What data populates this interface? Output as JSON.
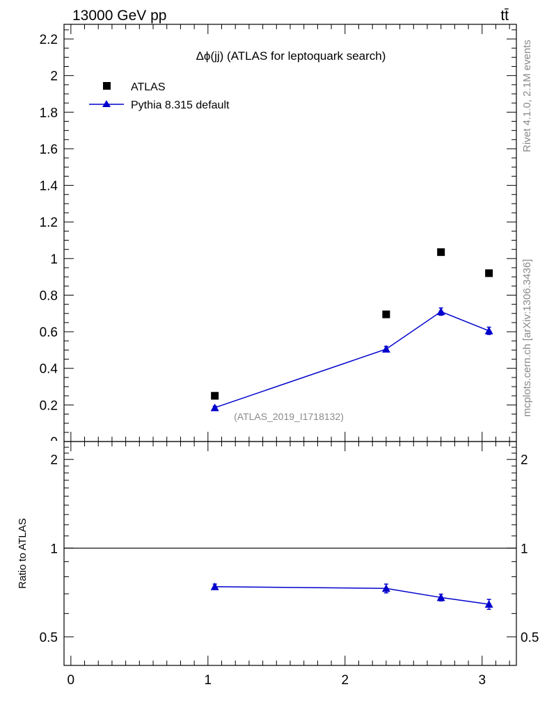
{
  "header": {
    "energy_label": "13000 GeV pp",
    "process_label": "tt̄"
  },
  "side_labels": {
    "rivet": "Rivet 4.1.0,  2.1M events",
    "mcplots": "mcplots.cern.ch [arXiv:1306.3436]"
  },
  "colors": {
    "data": "#000000",
    "mc": "#0000cc",
    "watermark": "#8a8a8a"
  },
  "chart_data": [
    {
      "type": "scatter",
      "panel": "main",
      "title": "Δϕ(jj) (ATLAS for leptoquark search)",
      "watermark": "(ATLAS_2019_I1718132)",
      "xlabel": "",
      "ylabel": "",
      "xlim": [
        -0.05,
        3.25
      ],
      "ylim": [
        0,
        2.28
      ],
      "yticks": [
        0.2,
        0.4,
        0.6,
        0.8,
        1,
        1.2,
        1.4,
        1.6,
        1.8,
        2,
        2.2
      ],
      "ytick_labels": [
        "0.2",
        "0.4",
        "0.6",
        "0.8",
        "1",
        "1.2",
        "1.4",
        "1.6",
        "1.8",
        "2",
        "2.2"
      ],
      "bottom_tick_label": "0",
      "legend_position": "top-left",
      "series": [
        {
          "name": "ATLAS",
          "marker": "square",
          "line": false,
          "x": [
            1.05,
            2.3,
            2.7,
            3.05
          ],
          "y": [
            0.25,
            0.695,
            1.035,
            0.92
          ],
          "yerr": [
            0,
            0,
            0,
            0
          ]
        },
        {
          "name": "Pythia 8.315 default",
          "marker": "triangle",
          "line": true,
          "x": [
            1.05,
            2.3,
            2.7,
            3.05
          ],
          "y": [
            0.185,
            0.505,
            0.71,
            0.605
          ],
          "yerr": [
            0.008,
            0.015,
            0.02,
            0.02
          ]
        }
      ]
    },
    {
      "type": "line",
      "panel": "ratio",
      "ylabel": "Ratio to ATLAS",
      "xlim": [
        -0.05,
        3.25
      ],
      "ylim": [
        0.4,
        2.3
      ],
      "yscale": "log",
      "reference_line": 1,
      "yticks": [
        0.5,
        1,
        2
      ],
      "ytick_labels": [
        "0.5",
        "1",
        "2"
      ],
      "xticks": [
        0,
        1,
        2,
        3
      ],
      "xtick_labels": [
        "0",
        "1",
        "2",
        "3"
      ],
      "series": [
        {
          "name": "Pythia 8.315 default",
          "marker": "triangle",
          "x": [
            1.05,
            2.3,
            2.7,
            3.05
          ],
          "y": [
            0.74,
            0.73,
            0.68,
            0.645
          ],
          "yerr": [
            0.015,
            0.025,
            0.018,
            0.025
          ]
        }
      ]
    }
  ]
}
